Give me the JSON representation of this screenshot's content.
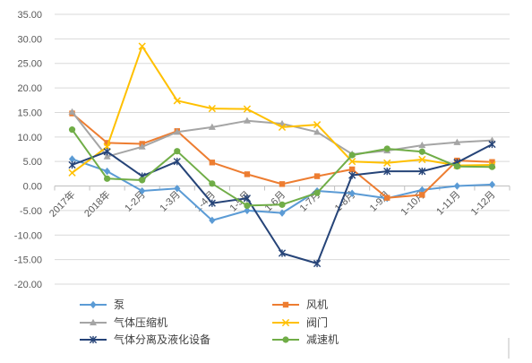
{
  "chart_data": {
    "type": "line",
    "title": "",
    "xlabel": "",
    "ylabel": "",
    "ylim": [
      -20,
      35
    ],
    "ytick_step": 5,
    "grid": true,
    "legend_position": "bottom",
    "categories": [
      "2017年",
      "2018年",
      "1-2月",
      "1-3月",
      "1-4月",
      "1-5月",
      "1-6月",
      "1-7月",
      "1-8月",
      "1-9月",
      "1-10月",
      "1-11月",
      "1-12月"
    ],
    "series": [
      {
        "name": "泵",
        "color": "#5b9bd5",
        "marker": "diamond",
        "values": [
          5.5,
          3.0,
          -1.0,
          -0.5,
          -7.0,
          -5.0,
          -5.5,
          -1.0,
          -1.5,
          -2.5,
          -0.8,
          0.0,
          0.3
        ]
      },
      {
        "name": "风机",
        "color": "#ed7d31",
        "marker": "square",
        "values": [
          14.8,
          8.8,
          8.6,
          11.2,
          4.8,
          2.4,
          0.4,
          2.0,
          3.4,
          -2.4,
          -1.8,
          5.2,
          4.9
        ]
      },
      {
        "name": "气体压缩机",
        "color": "#a5a5a5",
        "marker": "triangle",
        "values": [
          15.1,
          6.0,
          8.0,
          11.0,
          12.0,
          13.3,
          12.7,
          11.0,
          6.5,
          7.2,
          8.3,
          8.9,
          9.3
        ]
      },
      {
        "name": "阀门",
        "color": "#ffc000",
        "marker": "x",
        "values": [
          2.7,
          8.0,
          28.5,
          17.4,
          15.8,
          15.7,
          12.0,
          12.5,
          5.0,
          4.7,
          5.4,
          4.2,
          4.3
        ]
      },
      {
        "name": "气体分离及液化设备",
        "color": "#264478",
        "marker": "star",
        "values": [
          4.3,
          7.0,
          2.0,
          5.0,
          -3.5,
          -2.5,
          -13.7,
          -15.8,
          2.2,
          3.0,
          3.0,
          4.8,
          8.5
        ]
      },
      {
        "name": "减速机",
        "color": "#70ad47",
        "marker": "circle",
        "values": [
          11.5,
          1.5,
          1.2,
          7.1,
          0.5,
          -4.0,
          -3.8,
          -1.4,
          6.3,
          7.6,
          7.0,
          4.0,
          3.9
        ]
      }
    ]
  }
}
